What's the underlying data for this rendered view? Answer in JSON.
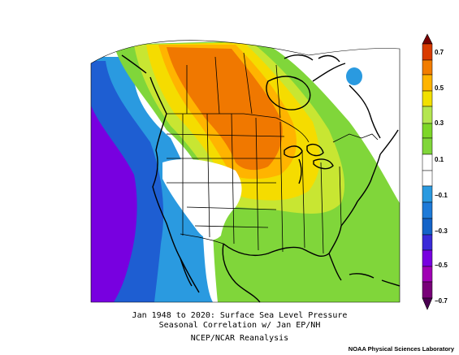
{
  "figure": {
    "title_line1": "Jan 1948 to 2020: Surface Sea Level Pressure",
    "title_line2": "Seasonal Correlation w/ Jan EP/NH",
    "source": "NCEP/NCAR Reanalysis",
    "credit": "NOAA Physical Sciences Laboratory"
  },
  "colorbar": {
    "labels": [
      "0.7",
      "0.5",
      "0.3",
      "0.1",
      "−0.1",
      "−0.3",
      "−0.5",
      "−0.7"
    ],
    "colors": [
      "#7a0000",
      "#d93b00",
      "#f27d00",
      "#ffb400",
      "#f2e000",
      "#b4e650",
      "#7dd628",
      "#ffffff",
      "#ffffff",
      "#2a9ae0",
      "#1463c8",
      "#3a2ad8",
      "#7800e0",
      "#a000b4",
      "#780078",
      "#4a0050"
    ],
    "palette": {
      "neg_07": "#8a0096",
      "neg_05": "#7800e0",
      "neg_03": "#1e5ed2",
      "neg_01": "#2a9ae0",
      "neutral": "#ffffff",
      "pos_01": "#80d63a",
      "pos_03": "#c8e632",
      "pos_04": "#f5dc00",
      "pos_05": "#ffb400",
      "pos_06": "#f07800"
    }
  },
  "map_data": {
    "field": "Surface Sea Level Pressure correlation",
    "region": "North America",
    "features": [
      "Pacific negative correlation (blue/purple)",
      "Central Canada positive maximum (orange)",
      "Eastern US positive (green/yellow)"
    ]
  }
}
